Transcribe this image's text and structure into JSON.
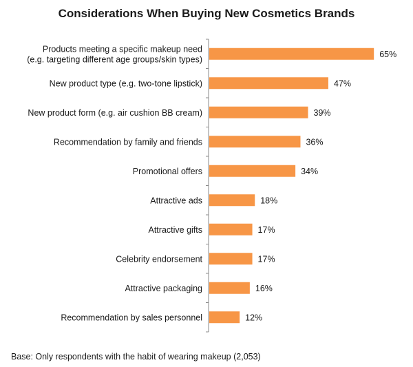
{
  "chart_data": {
    "type": "bar",
    "orientation": "horizontal",
    "title": "Considerations When Buying New Cosmetics Brands",
    "categories": [
      [
        "Products meeting a specific makeup need",
        "(e.g. targeting different age groups/skin types)"
      ],
      [
        "New product type (e.g. two-tone lipstick)"
      ],
      [
        "New product form (e.g. air cushion BB cream)"
      ],
      [
        "Recommendation by family and friends"
      ],
      [
        "Promotional offers"
      ],
      [
        "Attractive ads"
      ],
      [
        "Attractive gifts"
      ],
      [
        "Celebrity endorsement"
      ],
      [
        "Attractive packaging"
      ],
      [
        "Recommendation by sales personnel"
      ]
    ],
    "values": [
      65,
      47,
      39,
      36,
      34,
      18,
      17,
      17,
      16,
      12
    ],
    "value_labels": [
      "65%",
      "47%",
      "39%",
      "36%",
      "34%",
      "18%",
      "17%",
      "17%",
      "16%",
      "12%"
    ],
    "unit": "%",
    "bar_color": "#F79646",
    "axis_color": "#888888",
    "grid": false,
    "legend": "none"
  },
  "footnote": "Base: Only respondents with the habit of wearing makeup (2,053)"
}
